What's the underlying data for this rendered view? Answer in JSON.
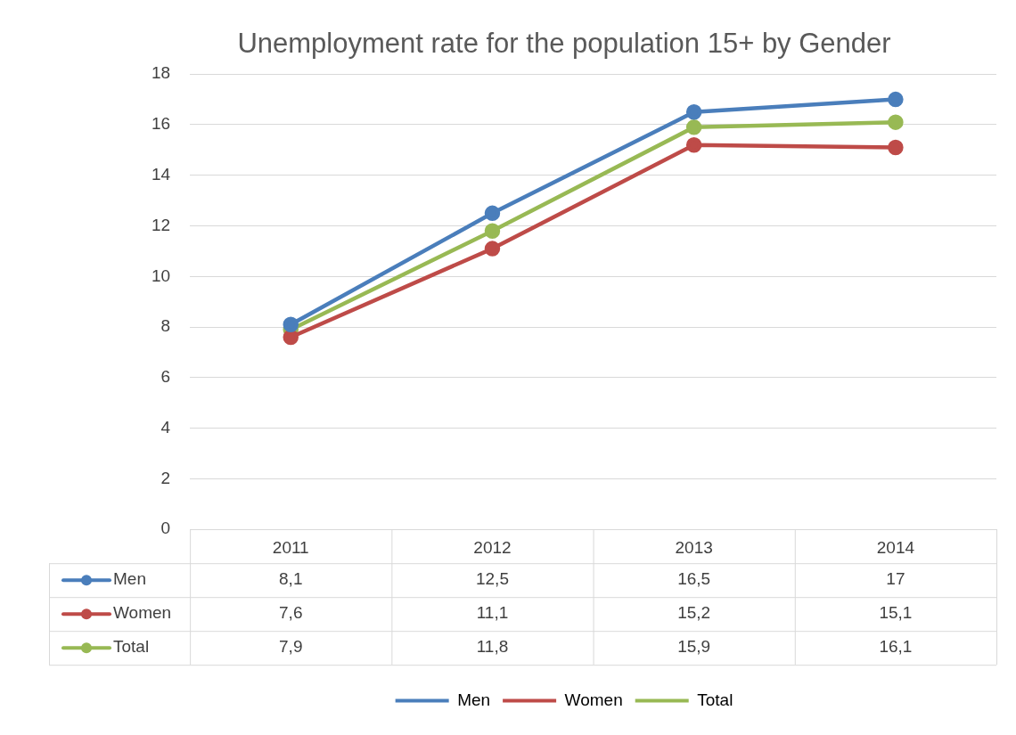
{
  "chart_data": {
    "type": "line",
    "title": "Unemployment rate for the population 15+ by Gender",
    "categories": [
      "2011",
      "2012",
      "2013",
      "2014"
    ],
    "series": [
      {
        "name": "Men",
        "color": "#4a7ebb",
        "values": [
          8.1,
          12.5,
          16.5,
          17
        ],
        "value_labels": [
          "8,1",
          "12,5",
          "16,5",
          "17"
        ]
      },
      {
        "name": "Women",
        "color": "#be4b48",
        "values": [
          7.6,
          11.1,
          15.2,
          15.1
        ],
        "value_labels": [
          "7,6",
          "11,1",
          "15,2",
          "15,1"
        ]
      },
      {
        "name": "Total",
        "color": "#98b954",
        "values": [
          7.9,
          11.8,
          15.9,
          16.1
        ],
        "value_labels": [
          "7,9",
          "11,8",
          "15,9",
          "16,1"
        ]
      }
    ],
    "ylim": [
      0,
      18
    ],
    "yticks": [
      0,
      2,
      4,
      6,
      8,
      10,
      12,
      14,
      16,
      18
    ],
    "grid": "y",
    "legend": "bottom",
    "marker": "circle",
    "line_style": "solid"
  }
}
